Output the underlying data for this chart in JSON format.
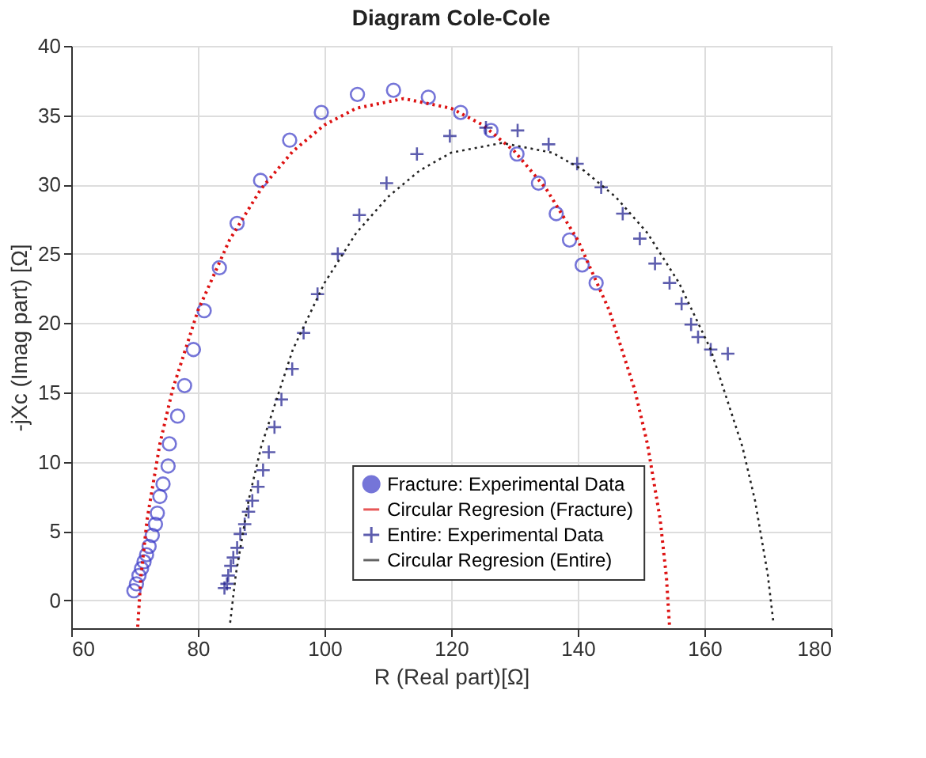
{
  "chart_data": {
    "type": "scatter",
    "title": "Diagram Cole-Cole",
    "xlabel": "R (Real part)[Ω]",
    "ylabel": "-jXc (Imag part) [Ω]",
    "xlim": [
      60,
      180
    ],
    "xticks": [
      60,
      80,
      100,
      120,
      140,
      160,
      180
    ],
    "ylim": [
      -2,
      40
    ],
    "yticks": [
      0,
      5,
      10,
      15,
      20,
      25,
      30,
      35,
      40
    ],
    "grid": true,
    "legend": "bottom",
    "series": [
      {
        "name": "Fracture: Experimental Data",
        "marker": "circle",
        "color": "#3b3bc8",
        "x": [
          69.9,
          70.3,
          70.7,
          71.1,
          71.5,
          71.9,
          72.3,
          72.8,
          73.3,
          73.6,
          74.0,
          74.5,
          75.3,
          75.5,
          76.8,
          77.9,
          79.3,
          81.0,
          83.4,
          86.2,
          89.9,
          94.5,
          99.5,
          105.2,
          110.9,
          116.4,
          121.5,
          126.3,
          130.4,
          133.8,
          136.6,
          138.7,
          140.7,
          142.9
        ],
        "values": [
          0.7,
          1.2,
          1.8,
          2.3,
          2.8,
          3.3,
          3.9,
          4.7,
          5.5,
          6.3,
          7.5,
          8.4,
          9.7,
          11.3,
          13.3,
          15.5,
          18.1,
          20.9,
          24.0,
          27.2,
          30.3,
          33.2,
          35.2,
          36.5,
          36.8,
          36.3,
          35.2,
          33.9,
          32.2,
          30.1,
          27.9,
          26.0,
          24.2,
          22.9
        ]
      },
      {
        "name": "Circular Regresion (Fracture)",
        "type": "line",
        "marker": "none",
        "line_style": "dotted",
        "color": "#dd1111",
        "x": [
          70.5,
          71,
          72,
          74,
          76,
          80,
          85,
          90,
          95,
          100,
          105,
          112.5,
          120,
          125,
          130,
          135,
          140,
          145,
          149,
          151,
          153,
          154,
          154.5
        ],
        "values": [
          -1.9,
          1.7,
          5.9,
          11.3,
          15.2,
          20.9,
          26.0,
          29.7,
          32.4,
          34.3,
          35.5,
          36.2,
          35.5,
          34.3,
          32.4,
          29.7,
          26.0,
          20.9,
          15.2,
          11.3,
          5.9,
          1.7,
          -1.9
        ]
      },
      {
        "name": "Entire: Experimental Data",
        "marker": "cross",
        "color": "#1a1a8c",
        "x": [
          84.2,
          84.6,
          84.8,
          85.2,
          85.6,
          86.2,
          86.7,
          87.4,
          88.0,
          88.6,
          89.5,
          90.3,
          91.2,
          92.1,
          93.2,
          94.9,
          96.7,
          98.9,
          102.1,
          105.5,
          109.8,
          114.6,
          119.8,
          125.5,
          130.5,
          135.4,
          139.9,
          143.7,
          147.1,
          149.8,
          152.2,
          154.5,
          156.4,
          157.9,
          159.0,
          161.0,
          163.7
        ],
        "values": [
          0.9,
          1.2,
          1.8,
          2.5,
          3.1,
          3.8,
          4.8,
          5.5,
          6.4,
          7.2,
          8.2,
          9.4,
          10.7,
          12.5,
          14.5,
          16.7,
          19.3,
          22.1,
          25.0,
          27.8,
          30.1,
          32.2,
          33.5,
          34.1,
          33.9,
          32.9,
          31.5,
          29.8,
          27.9,
          26.1,
          24.3,
          22.9,
          21.4,
          19.9,
          19.0,
          18.1,
          17.8
        ]
      },
      {
        "name": "Circular Regresion (Entire)",
        "type": "line",
        "marker": "none",
        "line_style": "dotted",
        "color": "#222222",
        "x": [
          85.1,
          86,
          88,
          90,
          95,
          100,
          105,
          110,
          115,
          120,
          128,
          136,
          141,
          146,
          151,
          156,
          161,
          166,
          168,
          170,
          170.9
        ],
        "values": [
          -1.6,
          1.9,
          7.2,
          11.1,
          18.1,
          22.9,
          26.5,
          29.1,
          31.0,
          32.3,
          33.0,
          32.3,
          31.0,
          29.1,
          26.5,
          22.9,
          18.1,
          11.1,
          7.2,
          1.9,
          -1.6
        ]
      }
    ]
  }
}
